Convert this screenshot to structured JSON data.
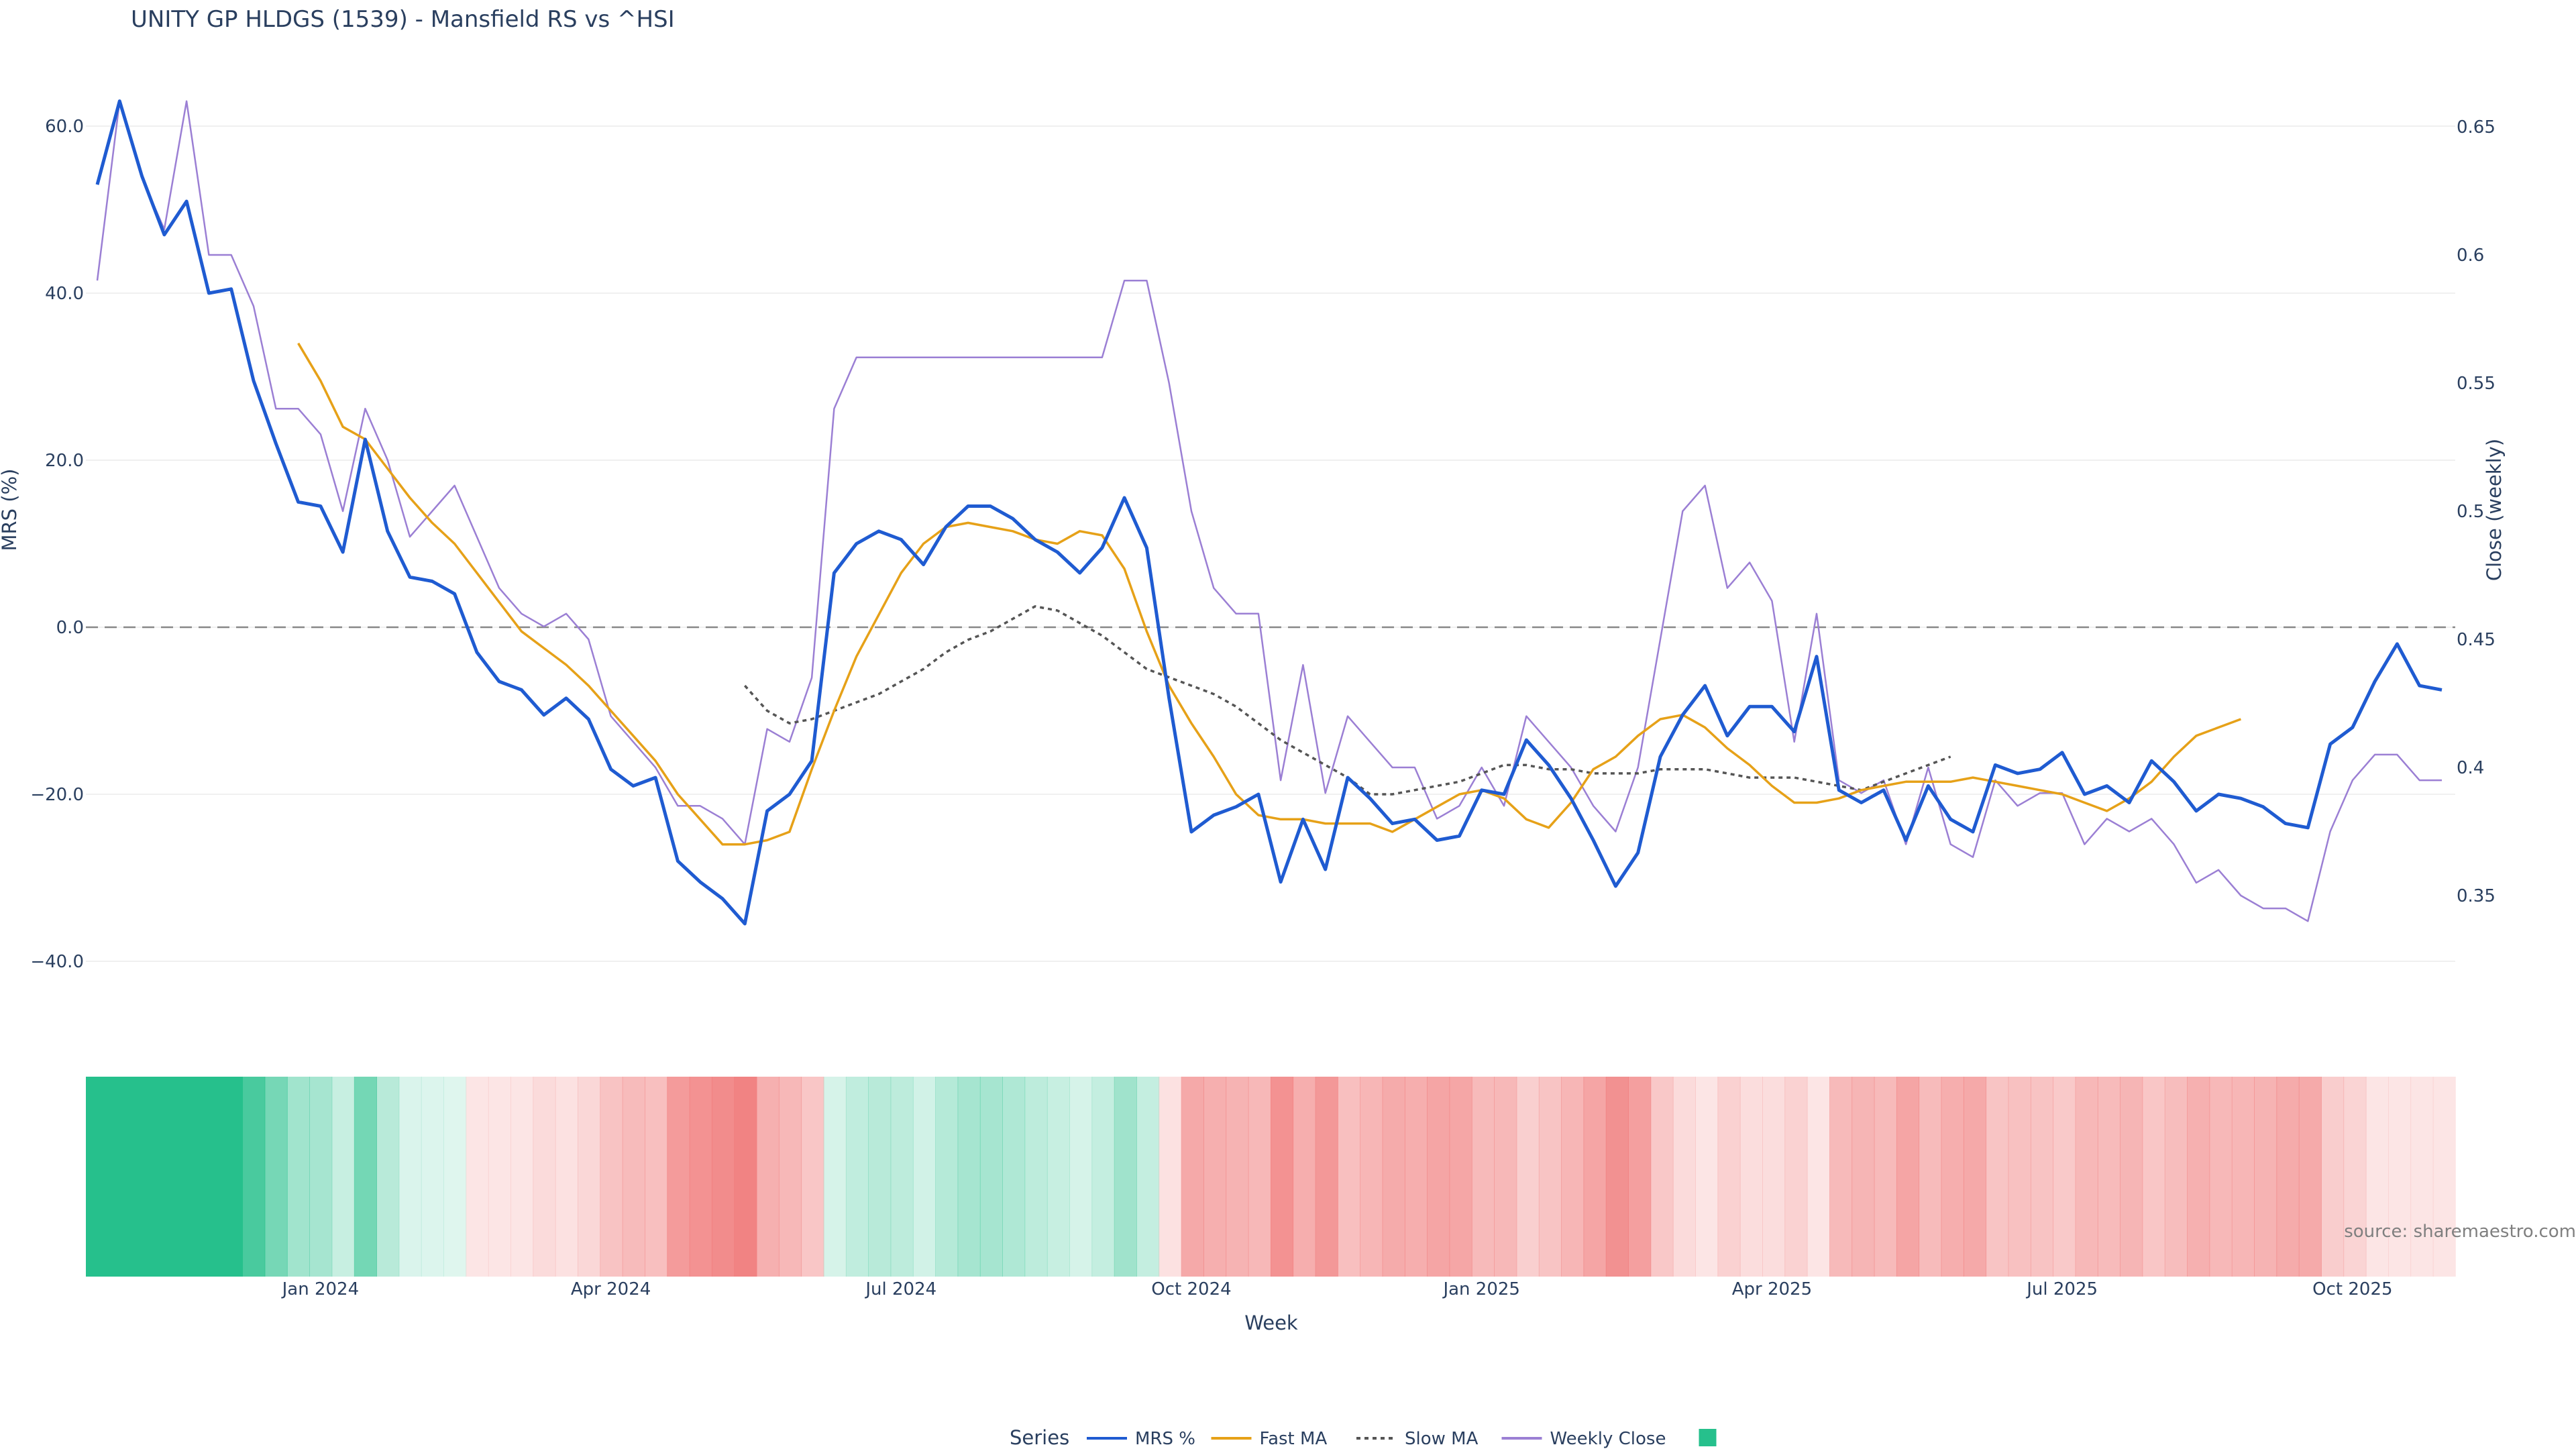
{
  "chart_data": {
    "type": "line",
    "title": "UNITY GP HLDGS (1539) - Mansfield RS vs ^HSI",
    "xlabel": "Week",
    "ylabel": "MRS (%)",
    "y2label": "Close (weekly)",
    "ylim": [
      -40,
      60
    ],
    "y2lim": [
      0.35,
      0.65
    ],
    "yticks": [
      "60.0",
      "40.0",
      "20.0",
      "0.0",
      "−20.0",
      "−40.0"
    ],
    "yticks_values": [
      60,
      40,
      20,
      0,
      -20,
      -40
    ],
    "y2ticks": [
      "0.65",
      "0.6",
      "0.55",
      "0.5",
      "0.45",
      "0.4",
      "0.35"
    ],
    "y2ticks_values": [
      0.65,
      0.6,
      0.55,
      0.5,
      0.45,
      0.4,
      0.35
    ],
    "xticks": [
      "Jan 2024",
      "Apr 2024",
      "Jul 2024",
      "Oct 2024",
      "Jan 2025",
      "Apr 2025",
      "Jul 2025",
      "Oct 2025"
    ],
    "xtick_positions": [
      10,
      23,
      36,
      49,
      62,
      75,
      88,
      101
    ],
    "grid": true,
    "zero_line": "dashed",
    "legend": {
      "title": "Series",
      "placement": "bottom-center"
    },
    "source": "source: sharemaestro.com",
    "series": [
      {
        "name": "MRS %",
        "color": "#1f5bd1",
        "axis": "left",
        "values": [
          53,
          63,
          54,
          47,
          51,
          40,
          40.5,
          29.5,
          22,
          15,
          14.5,
          9,
          22.5,
          11.5,
          6,
          5.5,
          4,
          -3,
          -6.5,
          -7.5,
          -10.5,
          -8.5,
          -11,
          -17,
          -19,
          -18,
          -28,
          -30.5,
          -32.5,
          -35.5,
          -22,
          -20,
          -16,
          6.5,
          10,
          11.5,
          10.5,
          7.5,
          12,
          14.5,
          14.5,
          13,
          10.5,
          9,
          6.5,
          9.5,
          15.5,
          9.5,
          -8.5,
          -24.5,
          -22.5,
          -21.5,
          -20,
          -30.5,
          -23,
          -29,
          -18,
          -20.5,
          -23.5,
          -23,
          -25.5,
          -25,
          -19.5,
          -20,
          -13.5,
          -16.5,
          -20.5,
          -25.5,
          -31,
          -27,
          -15.5,
          -10.5,
          -7,
          -13,
          -9.5,
          -9.5,
          -12.5,
          -3.5,
          -19.5,
          -21,
          -19.5,
          -25.5,
          -19,
          -23,
          -24.5,
          -16.5,
          -17.5,
          -17,
          -15,
          -20,
          -19,
          -21,
          -16,
          -18.5,
          -22,
          -20,
          -20.5,
          -21.5,
          -23.5,
          -24,
          -14,
          -12,
          -6.5,
          -2,
          -7,
          -7.5
        ]
      },
      {
        "name": "Fast MA",
        "color": "#e6a118",
        "axis": "left",
        "values": [
          null,
          null,
          null,
          null,
          null,
          null,
          null,
          null,
          null,
          34,
          29.5,
          24,
          22.5,
          19,
          15.5,
          12.5,
          10,
          6.5,
          3,
          -0.5,
          -2.5,
          -4.5,
          -7,
          -10,
          -13,
          -16,
          -20,
          -23,
          -26,
          -26,
          -25.5,
          -24.5,
          -17,
          -10,
          -3.5,
          1.5,
          6.5,
          10,
          12,
          12.5,
          12,
          11.5,
          10.5,
          10,
          11.5,
          11,
          7,
          -0.5,
          -7,
          -11.5,
          -15.5,
          -20,
          -22.5,
          -23,
          -23,
          -23.5,
          -23.5,
          -23.5,
          -24.5,
          -23,
          -21.5,
          -20,
          -19.5,
          -20.5,
          -23,
          -24,
          -21,
          -17,
          -15.5,
          -13,
          -11,
          -10.5,
          -12,
          -14.5,
          -16.5,
          -19,
          -21,
          -21,
          -20.5,
          -19.5,
          -19,
          -18.5,
          -18.5,
          -18.5,
          -18,
          -18.5,
          -19,
          -19.5,
          -20,
          -21,
          -22,
          -20.5,
          -18.5,
          -15.5,
          -13,
          -12,
          -11
        ]
      },
      {
        "name": "Slow MA",
        "color": "#555555",
        "axis": "left",
        "dash": true,
        "values": [
          null,
          null,
          null,
          null,
          null,
          null,
          null,
          null,
          null,
          null,
          null,
          null,
          null,
          null,
          null,
          null,
          null,
          null,
          null,
          null,
          null,
          null,
          null,
          null,
          null,
          null,
          null,
          null,
          null,
          -7,
          -10,
          -11.5,
          -11,
          -10,
          -9,
          -8,
          -6.5,
          -5,
          -3,
          -1.5,
          -0.5,
          1,
          2.5,
          2,
          0.5,
          -1,
          -3,
          -5,
          -6,
          -7,
          -8,
          -9.5,
          -11.5,
          -13.5,
          -15,
          -16.5,
          -18,
          -20,
          -20,
          -19.5,
          -19,
          -18.5,
          -17.5,
          -16.5,
          -16.5,
          -17,
          -17,
          -17.5,
          -17.5,
          -17.5,
          -17,
          -17,
          -17,
          -17.5,
          -18,
          -18,
          -18,
          -18.5,
          -19,
          -19.5,
          -18.5,
          -17.5,
          -16.5,
          -15.5
        ]
      },
      {
        "name": "Weekly Close",
        "color": "#9b7fd4",
        "axis": "right",
        "values": [
          0.59,
          0.66,
          0.63,
          0.61,
          0.66,
          0.6,
          0.6,
          0.58,
          0.54,
          0.54,
          0.53,
          0.5,
          0.54,
          0.52,
          0.49,
          0.5,
          0.51,
          0.49,
          0.47,
          0.46,
          0.455,
          0.46,
          0.45,
          0.42,
          0.41,
          0.4,
          0.385,
          0.385,
          0.38,
          0.37,
          0.415,
          0.41,
          0.435,
          0.54,
          0.56,
          0.56,
          0.56,
          0.56,
          0.56,
          0.56,
          0.56,
          0.56,
          0.56,
          0.56,
          0.56,
          0.56,
          0.59,
          0.59,
          0.55,
          0.5,
          0.47,
          0.46,
          0.46,
          0.395,
          0.44,
          0.39,
          0.42,
          0.41,
          0.4,
          0.4,
          0.38,
          0.385,
          0.4,
          0.385,
          0.42,
          0.41,
          0.4,
          0.385,
          0.375,
          0.4,
          0.45,
          0.5,
          0.51,
          0.47,
          0.48,
          0.465,
          0.41,
          0.46,
          0.395,
          0.39,
          0.395,
          0.37,
          0.4,
          0.37,
          0.365,
          0.395,
          0.385,
          0.39,
          0.39,
          0.37,
          0.38,
          0.375,
          0.38,
          0.37,
          0.355,
          0.36,
          0.35,
          0.345,
          0.345,
          0.34,
          0.375,
          0.395,
          0.405,
          0.405,
          0.395,
          0.395
        ]
      }
    ],
    "heatmap": {
      "color_positive": "#26c08c",
      "color_negative": "#f07c7c",
      "note": "strip colored by MRS value per week"
    }
  }
}
